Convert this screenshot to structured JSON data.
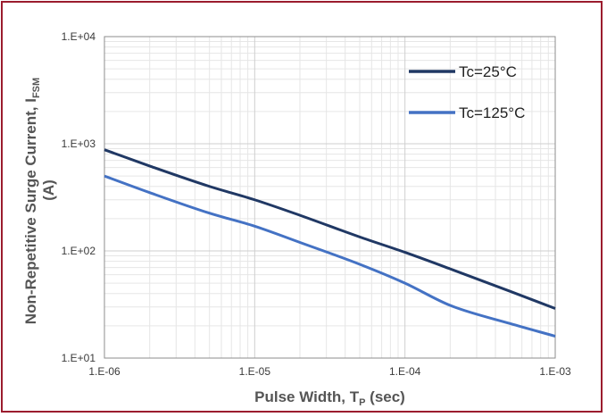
{
  "chart_data": {
    "type": "line",
    "xscale": "log",
    "yscale": "log",
    "xlim": [
      1e-06,
      0.001
    ],
    "ylim": [
      10,
      10000
    ],
    "grid": true,
    "legend_position": "top-right",
    "xlabel": "Pulse Width, T",
    "xlabel_sub": "P",
    "xlabel_suffix": " (sec)",
    "ylabel_line1": "Non-Repetitive Surge Current, I",
    "ylabel_sub": "FSM",
    "ylabel_line2": "(A)",
    "x_ticks": [
      {
        "value": 1e-06,
        "label": "1.E-06"
      },
      {
        "value": 1e-05,
        "label": "1.E-05"
      },
      {
        "value": 0.0001,
        "label": "1.E-04"
      },
      {
        "value": 0.001,
        "label": "1.E-03"
      }
    ],
    "y_ticks": [
      {
        "value": 10,
        "label": "1.E+01"
      },
      {
        "value": 100,
        "label": "1.E+02"
      },
      {
        "value": 1000,
        "label": "1.E+03"
      },
      {
        "value": 10000,
        "label": "1.E+04"
      }
    ],
    "series": [
      {
        "name": "Tc=25°C",
        "color": "#203864",
        "x": [
          1e-06,
          2e-06,
          5e-06,
          1e-05,
          2e-05,
          5e-05,
          0.0001,
          0.0002,
          0.0005,
          0.001
        ],
        "y": [
          880,
          620,
          400,
          300,
          215,
          135,
          97,
          68,
          42,
          29
        ]
      },
      {
        "name": "Tc=125°C",
        "color": "#4472c4",
        "x": [
          1e-06,
          2e-06,
          5e-06,
          1e-05,
          2e-05,
          5e-05,
          0.0001,
          0.0002,
          0.0005,
          0.001
        ],
        "y": [
          500,
          350,
          225,
          170,
          120,
          75,
          50,
          31,
          21,
          16
        ]
      }
    ]
  }
}
